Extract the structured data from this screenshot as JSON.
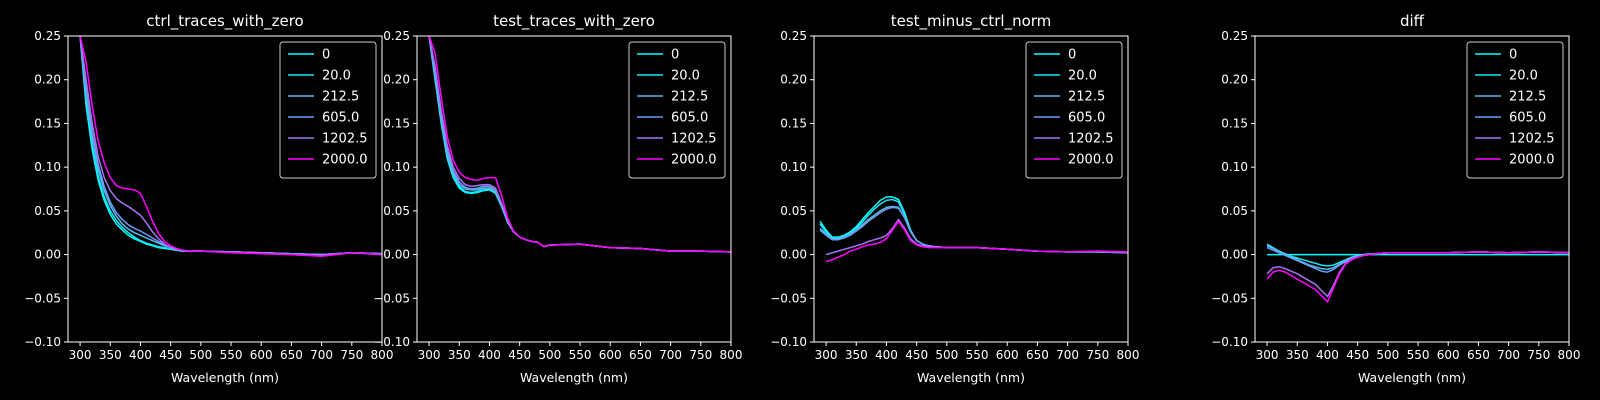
{
  "colors": {
    "background": "#000000",
    "foreground": "#ffffff",
    "series": [
      "#00ffff",
      "#19e6f5",
      "#55bcf0",
      "#6e9cf5",
      "#a574f5",
      "#ff00ff"
    ]
  },
  "chart_data": [
    {
      "type": "line",
      "title": "ctrl_traces_with_zero",
      "xlabel": "Wavelength (nm)",
      "ylabel": "",
      "xlim": [
        280,
        800
      ],
      "ylim": [
        -0.1,
        0.25
      ],
      "xticks": [
        "300",
        "350",
        "400",
        "450",
        "500",
        "550",
        "600",
        "650",
        "700",
        "750",
        "800"
      ],
      "yticks": [
        "−0.10",
        "−0.05",
        "0.00",
        "0.05",
        "0.10",
        "0.15",
        "0.20",
        "0.25"
      ],
      "grid": false,
      "legend": "top-right",
      "x": [
        300,
        310,
        320,
        330,
        340,
        350,
        360,
        370,
        380,
        390,
        400,
        410,
        420,
        430,
        440,
        450,
        460,
        470,
        480,
        500,
        550,
        600,
        650,
        700,
        750,
        800
      ],
      "series": [
        {
          "name": "0",
          "values": [
            0.25,
            0.17,
            0.12,
            0.085,
            0.062,
            0.046,
            0.035,
            0.028,
            0.022,
            0.018,
            0.015,
            0.012,
            0.01,
            0.008,
            0.007,
            0.006,
            0.005,
            0.004,
            0.004,
            0.004,
            0.003,
            0.002,
            0.001,
            0.0,
            0.002,
            0.001
          ]
        },
        {
          "name": "20.0",
          "values": [
            0.25,
            0.175,
            0.125,
            0.09,
            0.066,
            0.05,
            0.039,
            0.031,
            0.025,
            0.02,
            0.016,
            0.013,
            0.011,
            0.009,
            0.008,
            0.006,
            0.005,
            0.004,
            0.004,
            0.004,
            0.003,
            0.002,
            0.001,
            0.0,
            0.002,
            0.001
          ]
        },
        {
          "name": "212.5",
          "values": [
            0.25,
            0.185,
            0.135,
            0.098,
            0.073,
            0.056,
            0.044,
            0.035,
            0.029,
            0.025,
            0.022,
            0.019,
            0.016,
            0.013,
            0.01,
            0.008,
            0.006,
            0.005,
            0.004,
            0.004,
            0.003,
            0.002,
            0.001,
            0.0,
            0.002,
            0.001
          ]
        },
        {
          "name": "605.0",
          "values": [
            0.25,
            0.19,
            0.14,
            0.103,
            0.078,
            0.06,
            0.048,
            0.04,
            0.034,
            0.03,
            0.027,
            0.023,
            0.019,
            0.015,
            0.011,
            0.008,
            0.006,
            0.005,
            0.004,
            0.004,
            0.003,
            0.002,
            0.001,
            0.0,
            0.002,
            0.001
          ]
        },
        {
          "name": "1202.5",
          "values": [
            0.25,
            0.2,
            0.15,
            0.112,
            0.088,
            0.073,
            0.064,
            0.059,
            0.055,
            0.05,
            0.045,
            0.036,
            0.026,
            0.018,
            0.012,
            0.008,
            0.006,
            0.005,
            0.004,
            0.004,
            0.003,
            0.002,
            0.0,
            -0.001,
            0.002,
            0.0
          ]
        },
        {
          "name": "2000.0",
          "values": [
            0.25,
            0.22,
            0.17,
            0.13,
            0.105,
            0.088,
            0.079,
            0.076,
            0.075,
            0.074,
            0.07,
            0.055,
            0.038,
            0.024,
            0.015,
            0.01,
            0.007,
            0.005,
            0.004,
            0.004,
            0.002,
            0.001,
            0.0,
            -0.002,
            0.002,
            0.0
          ]
        }
      ]
    },
    {
      "type": "line",
      "title": "test_traces_with_zero",
      "xlabel": "Wavelength (nm)",
      "ylabel": "",
      "xlim": [
        280,
        800
      ],
      "ylim": [
        -0.1,
        0.25
      ],
      "xticks": [
        "300",
        "350",
        "400",
        "450",
        "500",
        "550",
        "600",
        "650",
        "700",
        "750",
        "800"
      ],
      "yticks": [
        "−0.10",
        "−0.05",
        "0.00",
        "0.05",
        "0.10",
        "0.15",
        "0.20",
        "0.25"
      ],
      "grid": false,
      "legend": "top-right",
      "x": [
        300,
        310,
        320,
        330,
        340,
        350,
        360,
        370,
        380,
        390,
        400,
        410,
        420,
        430,
        440,
        450,
        460,
        470,
        480,
        490,
        500,
        550,
        600,
        650,
        700,
        750,
        800
      ],
      "series": [
        {
          "name": "0",
          "values": [
            0.25,
            0.2,
            0.15,
            0.11,
            0.088,
            0.076,
            0.071,
            0.07,
            0.071,
            0.073,
            0.074,
            0.07,
            0.055,
            0.037,
            0.026,
            0.02,
            0.017,
            0.015,
            0.014,
            0.009,
            0.011,
            0.012,
            0.008,
            0.007,
            0.004,
            0.004,
            0.003
          ]
        },
        {
          "name": "20.0",
          "values": [
            0.25,
            0.2,
            0.152,
            0.112,
            0.09,
            0.078,
            0.072,
            0.071,
            0.072,
            0.074,
            0.075,
            0.071,
            0.056,
            0.037,
            0.026,
            0.02,
            0.017,
            0.015,
            0.014,
            0.009,
            0.011,
            0.012,
            0.008,
            0.007,
            0.004,
            0.004,
            0.003
          ]
        },
        {
          "name": "212.5",
          "values": [
            0.25,
            0.205,
            0.155,
            0.116,
            0.093,
            0.08,
            0.075,
            0.074,
            0.074,
            0.076,
            0.076,
            0.072,
            0.057,
            0.038,
            0.026,
            0.02,
            0.017,
            0.015,
            0.014,
            0.009,
            0.011,
            0.012,
            0.008,
            0.007,
            0.004,
            0.004,
            0.003
          ]
        },
        {
          "name": "605.0",
          "values": [
            0.25,
            0.21,
            0.16,
            0.12,
            0.096,
            0.083,
            0.077,
            0.075,
            0.076,
            0.078,
            0.078,
            0.074,
            0.058,
            0.038,
            0.026,
            0.02,
            0.017,
            0.015,
            0.014,
            0.009,
            0.011,
            0.012,
            0.008,
            0.007,
            0.004,
            0.004,
            0.003
          ]
        },
        {
          "name": "1202.5",
          "values": [
            0.25,
            0.215,
            0.165,
            0.125,
            0.1,
            0.087,
            0.08,
            0.078,
            0.079,
            0.08,
            0.08,
            0.076,
            0.059,
            0.039,
            0.026,
            0.02,
            0.017,
            0.015,
            0.014,
            0.009,
            0.011,
            0.012,
            0.008,
            0.007,
            0.004,
            0.004,
            0.003
          ]
        },
        {
          "name": "2000.0",
          "values": [
            0.25,
            0.23,
            0.18,
            0.135,
            0.108,
            0.094,
            0.088,
            0.086,
            0.085,
            0.087,
            0.088,
            0.088,
            0.068,
            0.042,
            0.027,
            0.02,
            0.017,
            0.015,
            0.014,
            0.009,
            0.011,
            0.012,
            0.008,
            0.007,
            0.004,
            0.004,
            0.003
          ]
        }
      ]
    },
    {
      "type": "line",
      "title": "test_minus_ctrl_norm",
      "xlabel": "Wavelength (nm)",
      "ylabel": "",
      "xlim": [
        280,
        800
      ],
      "ylim": [
        -0.1,
        0.25
      ],
      "xticks": [
        "300",
        "350",
        "400",
        "450",
        "500",
        "550",
        "600",
        "650",
        "700",
        "750",
        "800"
      ],
      "yticks": [
        "−0.10",
        "−0.05",
        "0.00",
        "0.05",
        "0.10",
        "0.15",
        "0.20",
        "0.25"
      ],
      "grid": false,
      "legend": "top-right",
      "x": [
        290,
        300,
        310,
        320,
        330,
        340,
        350,
        360,
        370,
        380,
        390,
        400,
        410,
        420,
        430,
        440,
        450,
        460,
        470,
        480,
        500,
        550,
        600,
        650,
        700,
        750,
        800
      ],
      "series": [
        {
          "name": "0",
          "values": [
            0.038,
            0.028,
            0.02,
            0.02,
            0.022,
            0.026,
            0.032,
            0.04,
            0.048,
            0.055,
            0.062,
            0.066,
            0.066,
            0.063,
            0.048,
            0.028,
            0.016,
            0.012,
            0.01,
            0.009,
            0.008,
            0.008,
            0.006,
            0.004,
            0.003,
            0.003,
            0.002
          ]
        },
        {
          "name": "20.0",
          "values": [
            0.035,
            0.026,
            0.019,
            0.019,
            0.021,
            0.025,
            0.03,
            0.037,
            0.045,
            0.052,
            0.058,
            0.062,
            0.063,
            0.06,
            0.046,
            0.027,
            0.016,
            0.012,
            0.01,
            0.009,
            0.008,
            0.008,
            0.006,
            0.004,
            0.003,
            0.003,
            0.002
          ]
        },
        {
          "name": "212.5",
          "values": [
            0.03,
            0.024,
            0.018,
            0.018,
            0.02,
            0.023,
            0.028,
            0.034,
            0.04,
            0.045,
            0.05,
            0.054,
            0.055,
            0.054,
            0.043,
            0.026,
            0.016,
            0.012,
            0.01,
            0.009,
            0.008,
            0.008,
            0.006,
            0.004,
            0.003,
            0.003,
            0.002
          ]
        },
        {
          "name": "605.0",
          "values": [
            0.028,
            0.022,
            0.017,
            0.017,
            0.019,
            0.022,
            0.027,
            0.032,
            0.038,
            0.043,
            0.048,
            0.052,
            0.054,
            0.053,
            0.042,
            0.026,
            0.016,
            0.012,
            0.01,
            0.009,
            0.008,
            0.008,
            0.006,
            0.004,
            0.003,
            0.003,
            0.002
          ]
        },
        {
          "name": "1202.5",
          "values": [
            null,
            0.0,
            0.002,
            0.004,
            0.006,
            0.008,
            0.01,
            0.012,
            0.015,
            0.017,
            0.019,
            0.022,
            0.03,
            0.04,
            0.03,
            0.018,
            0.012,
            0.01,
            0.009,
            0.009,
            0.008,
            0.008,
            0.006,
            0.004,
            0.003,
            0.004,
            0.002
          ]
        },
        {
          "name": "2000.0",
          "values": [
            null,
            -0.008,
            -0.006,
            -0.003,
            0.0,
            0.004,
            0.006,
            0.009,
            0.011,
            0.012,
            0.014,
            0.018,
            0.028,
            0.038,
            0.028,
            0.016,
            0.011,
            0.009,
            0.008,
            0.008,
            0.008,
            0.008,
            0.006,
            0.004,
            0.003,
            0.004,
            0.003
          ]
        }
      ]
    },
    {
      "type": "line",
      "title": "diff",
      "xlabel": "Wavelength (nm)",
      "ylabel": "",
      "xlim": [
        280,
        800
      ],
      "ylim": [
        -0.1,
        0.25
      ],
      "xticks": [
        "300",
        "350",
        "400",
        "450",
        "500",
        "550",
        "600",
        "650",
        "700",
        "750",
        "800"
      ],
      "yticks": [
        "−0.10",
        "−0.05",
        "0.00",
        "0.05",
        "0.10",
        "0.15",
        "0.20",
        "0.25"
      ],
      "grid": false,
      "legend": "top-right",
      "x": [
        300,
        310,
        320,
        330,
        340,
        350,
        360,
        370,
        380,
        390,
        400,
        410,
        420,
        430,
        440,
        450,
        460,
        470,
        480,
        500,
        550,
        600,
        650,
        700,
        750,
        800
      ],
      "series": [
        {
          "name": "0",
          "values": [
            0.0,
            0.0,
            0.0,
            0.0,
            0.0,
            0.0,
            0.0,
            0.0,
            0.0,
            0.0,
            0.0,
            0.0,
            0.0,
            0.0,
            0.0,
            0.0,
            0.0,
            0.0,
            0.0,
            0.0,
            0.0,
            0.0,
            0.0,
            0.0,
            0.0,
            0.0
          ]
        },
        {
          "name": "20.0",
          "values": [
            0.012,
            0.008,
            0.004,
            0.001,
            -0.002,
            -0.004,
            -0.006,
            -0.008,
            -0.01,
            -0.012,
            -0.013,
            -0.012,
            -0.009,
            -0.006,
            -0.003,
            -0.001,
            0.0,
            0.001,
            0.001,
            0.002,
            0.002,
            0.002,
            0.003,
            0.002,
            0.003,
            0.002
          ]
        },
        {
          "name": "212.5",
          "values": [
            0.01,
            0.007,
            0.003,
            0.0,
            -0.003,
            -0.006,
            -0.009,
            -0.012,
            -0.014,
            -0.016,
            -0.017,
            -0.015,
            -0.011,
            -0.007,
            -0.004,
            -0.002,
            -0.001,
            0.0,
            0.001,
            0.002,
            0.002,
            0.002,
            0.003,
            0.002,
            0.003,
            0.002
          ]
        },
        {
          "name": "605.0",
          "values": [
            0.008,
            0.005,
            0.002,
            -0.001,
            -0.004,
            -0.007,
            -0.01,
            -0.013,
            -0.016,
            -0.019,
            -0.02,
            -0.017,
            -0.012,
            -0.008,
            -0.004,
            -0.002,
            -0.001,
            0.0,
            0.001,
            0.002,
            0.002,
            0.002,
            0.003,
            0.002,
            0.003,
            0.002
          ]
        },
        {
          "name": "1202.5",
          "values": [
            -0.022,
            -0.015,
            -0.014,
            -0.016,
            -0.019,
            -0.022,
            -0.026,
            -0.03,
            -0.034,
            -0.041,
            -0.048,
            -0.035,
            -0.02,
            -0.01,
            -0.005,
            -0.003,
            -0.001,
            0.0,
            0.001,
            0.002,
            0.002,
            0.002,
            0.003,
            0.002,
            0.003,
            0.002
          ]
        },
        {
          "name": "2000.0",
          "values": [
            -0.028,
            -0.02,
            -0.018,
            -0.02,
            -0.024,
            -0.028,
            -0.032,
            -0.036,
            -0.04,
            -0.047,
            -0.054,
            -0.038,
            -0.022,
            -0.011,
            -0.006,
            -0.003,
            -0.001,
            0.0,
            0.001,
            0.002,
            0.002,
            0.002,
            0.003,
            0.002,
            0.003,
            0.002
          ]
        }
      ]
    }
  ]
}
